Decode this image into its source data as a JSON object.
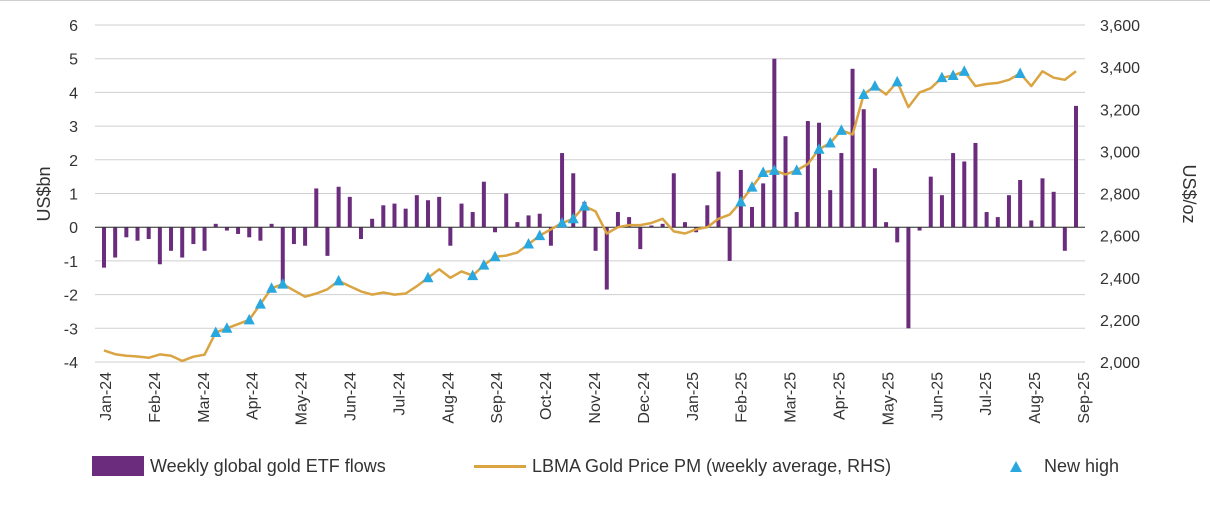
{
  "chart_data": {
    "type": "bar+line",
    "title": "",
    "y_left_label": "US$bn",
    "y_right_label": "US$/oz",
    "y_left_range": [
      -4,
      6
    ],
    "y_right_range": [
      2000,
      3600
    ],
    "y_left_ticks": [
      "-4",
      "-3",
      "-2",
      "-1",
      "0",
      "1",
      "2",
      "3",
      "4",
      "5",
      "6"
    ],
    "y_right_ticks": [
      "2,000",
      "2,200",
      "2,400",
      "2,600",
      "2,800",
      "3,000",
      "3,200",
      "3,400",
      "3,600"
    ],
    "x_tick_labels": [
      "Jan-24",
      "Feb-24",
      "Mar-24",
      "Apr-24",
      "May-24",
      "Jun-24",
      "Jul-24",
      "Aug-24",
      "Sep-24",
      "Oct-24",
      "Nov-24",
      "Dec-24",
      "Jan-25",
      "Feb-25",
      "Mar-25",
      "Apr-25",
      "May-25",
      "Jun-25",
      "Jul-25",
      "Aug-25",
      "Sep-25"
    ],
    "weeks_total": 88,
    "series": [
      {
        "name": "Weekly global gold ETF flows",
        "axis": "left",
        "color": "#6b2c7d",
        "values": [
          -1.2,
          -0.9,
          -0.3,
          -0.4,
          -0.35,
          -1.1,
          -0.7,
          -0.9,
          -0.5,
          -0.7,
          0.1,
          -0.1,
          -0.2,
          -0.3,
          -0.4,
          0.1,
          -1.7,
          -0.5,
          -0.55,
          1.15,
          -0.85,
          1.2,
          0.9,
          -0.35,
          0.25,
          0.65,
          0.7,
          0.55,
          0.95,
          0.8,
          0.9,
          -0.55,
          0.7,
          0.45,
          1.35,
          -0.15,
          1.0,
          0.15,
          0.35,
          0.4,
          -0.55,
          2.2,
          1.6,
          0.75,
          -0.7,
          -1.85,
          0.45,
          0.3,
          -0.65,
          0.05,
          0.1,
          1.6,
          0.15,
          -0.15,
          0.65,
          1.65,
          -1.0,
          1.7,
          0.6,
          1.3,
          5.0,
          2.7,
          0.45,
          3.15,
          3.1,
          1.1,
          2.2,
          4.7,
          3.5,
          1.75,
          0.15,
          -0.45,
          -3.0,
          -0.1,
          1.5,
          0.95,
          2.2,
          1.95,
          2.5,
          0.45,
          0.3,
          0.95,
          1.4,
          0.2,
          1.45,
          1.05,
          -0.7,
          3.6
        ]
      },
      {
        "name": "LBMA Gold Price PM (weekly average, RHS)",
        "axis": "right",
        "color": "#d9a441",
        "values": [
          2055,
          2037,
          2030,
          2026,
          2020,
          2036,
          2030,
          2005,
          2025,
          2035,
          2140,
          2160,
          2180,
          2200,
          2275,
          2350,
          2370,
          2340,
          2310,
          2325,
          2345,
          2385,
          2360,
          2335,
          2320,
          2330,
          2320,
          2325,
          2360,
          2400,
          2440,
          2400,
          2430,
          2410,
          2460,
          2500,
          2505,
          2520,
          2560,
          2600,
          2630,
          2660,
          2680,
          2740,
          2715,
          2610,
          2640,
          2650,
          2650,
          2660,
          2680,
          2620,
          2610,
          2630,
          2640,
          2680,
          2700,
          2760,
          2830,
          2900,
          2910,
          2890,
          2910,
          2940,
          3010,
          3040,
          3100,
          3080,
          3270,
          3310,
          3270,
          3330,
          3210,
          3280,
          3300,
          3350,
          3360,
          3380,
          3310,
          3320,
          3325,
          3340,
          3370,
          3310,
          3380,
          3350,
          3340,
          3380
        ]
      },
      {
        "name": "New high",
        "axis": "right",
        "color": "#29a8e0",
        "marker": "triangle",
        "week_indices": [
          10,
          11,
          13,
          14,
          15,
          16,
          21,
          29,
          33,
          34,
          35,
          38,
          39,
          41,
          42,
          43,
          57,
          58,
          59,
          60,
          62,
          64,
          65,
          66,
          68,
          69,
          71,
          75,
          76,
          77,
          82
        ]
      }
    ]
  },
  "legend": {
    "bars_label": "Weekly global gold ETF flows",
    "line_label": "LBMA Gold Price PM (weekly average, RHS)",
    "marker_label": "New high"
  }
}
